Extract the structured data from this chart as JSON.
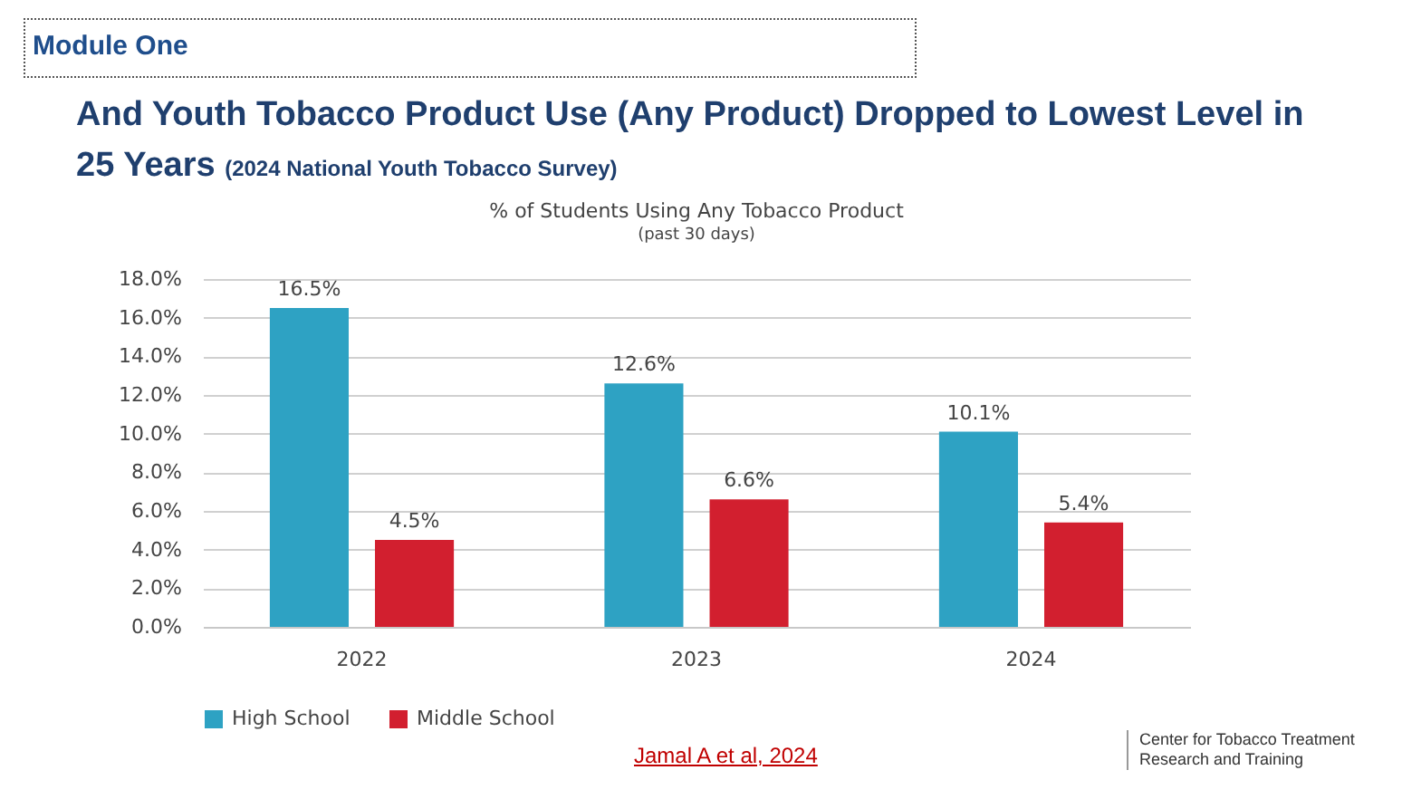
{
  "chart_data": {
    "type": "bar",
    "title": "And Youth Tobacco Product Use (Any Product) Dropped to Lowest Level in 25 Years",
    "subtitle": "% of Students Using Any Tobacco Product",
    "annotations": [
      "Module One",
      "(2024 National Youth Tobacco Survey)",
      "(past 30 days)",
      "Jamal A et al, 2024",
      "Center for Tobacco Treatment Research and Training"
    ],
    "categories": [
      "2022",
      "2023",
      "2024"
    ],
    "series": [
      {
        "name": "High School",
        "color": "#2ea2c3",
        "values": [
          16.5,
          12.6,
          10.1
        ],
        "value_labels": [
          "16.5%",
          "12.6%",
          "10.1%"
        ]
      },
      {
        "name": "Middle School",
        "color": "#d21f2f",
        "values": [
          4.5,
          6.6,
          5.4
        ],
        "value_labels": [
          "4.5%",
          "6.6%",
          "5.4%"
        ]
      }
    ],
    "ylim": [
      0,
      18
    ],
    "yticks": [
      {
        "value": 0,
        "label": "0.0%"
      },
      {
        "value": 2,
        "label": "2.0%"
      },
      {
        "value": 4,
        "label": "4.0%"
      },
      {
        "value": 6,
        "label": "6.0%"
      },
      {
        "value": 8,
        "label": "8.0%"
      },
      {
        "value": 10,
        "label": "10.0%"
      },
      {
        "value": 12,
        "label": "12.0%"
      },
      {
        "value": 14,
        "label": "14.0%"
      },
      {
        "value": 16,
        "label": "16.0%"
      },
      {
        "value": 18,
        "label": "18.0%"
      }
    ],
    "grid": "y",
    "legend": "bottom"
  }
}
